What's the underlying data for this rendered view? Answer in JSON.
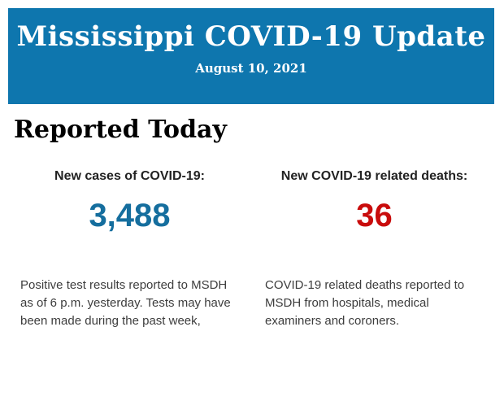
{
  "header": {
    "title": "Mississippi COVID-19 Update",
    "date": "August 10, 2021",
    "background_color": "#0e76ae",
    "text_color": "#ffffff"
  },
  "main": {
    "section_title": "Reported Today",
    "stats": [
      {
        "label": "New cases of COVID-19:",
        "value": "3,488",
        "value_color": "#156e9e",
        "description": "Positive test results reported to MSDH as of 6 p.m. yesterday. Tests may have been made during the past week,"
      },
      {
        "label": "New COVID-19 related deaths:",
        "value": "36",
        "value_color": "#c90c0c",
        "description": "COVID-19 related deaths reported to MSDH from hospitals, medical examiners and coroners."
      }
    ]
  }
}
